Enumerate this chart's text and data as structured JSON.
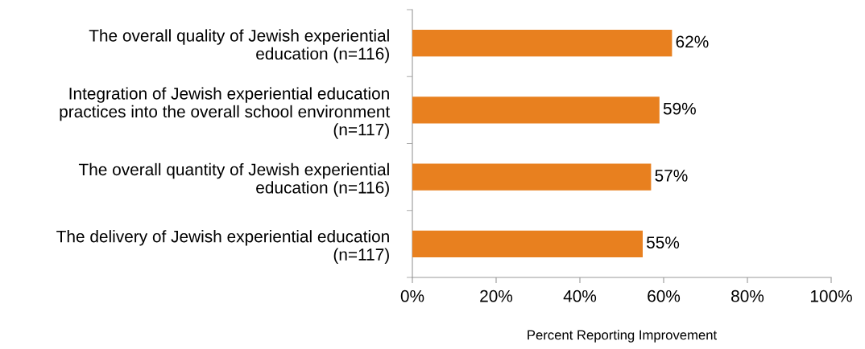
{
  "chart_data": {
    "type": "bar",
    "orientation": "horizontal",
    "xlabel": "Percent Reporting Improvement",
    "categories": [
      "The overall quality of Jewish experiential\neducation (n=116)",
      "Integration of Jewish experiential education\npractices into the overall school environment\n(n=117)",
      "The overall quantity of Jewish experiential\neducation (n=116)",
      "The delivery of Jewish experiential education\n(n=117)"
    ],
    "values": [
      62,
      59,
      57,
      55
    ],
    "value_labels": [
      "62%",
      "59%",
      "57%",
      "55%"
    ],
    "color": "#e8801f",
    "xlim": [
      0,
      100
    ],
    "xticks": [
      {
        "value": 0,
        "label": "0%"
      },
      {
        "value": 20,
        "label": "20%"
      },
      {
        "value": 40,
        "label": "40%"
      },
      {
        "value": 60,
        "label": "60%"
      },
      {
        "value": 80,
        "label": "80%"
      },
      {
        "value": 100,
        "label": "100%"
      }
    ],
    "grid": false,
    "legend": false
  }
}
